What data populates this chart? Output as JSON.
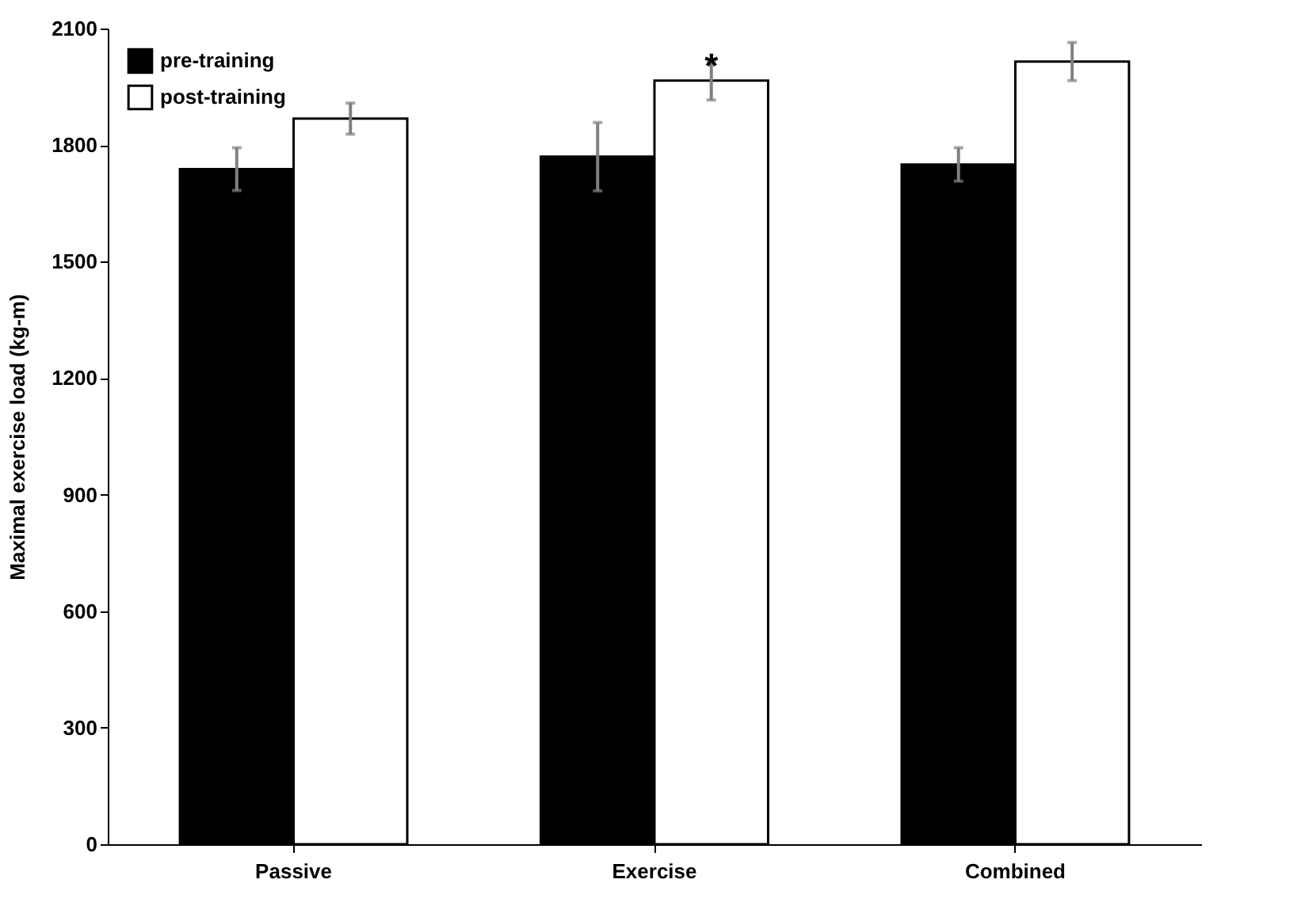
{
  "chart_data": {
    "type": "bar",
    "ylabel": "Maximal exercise load (kg-m)",
    "categories": [
      "Passive",
      "Exercise",
      "Combined"
    ],
    "series": [
      {
        "name": "pre-training",
        "color": "#000000",
        "values": [
          1738,
          1770,
          1750
        ],
        "errors": [
          55,
          88,
          43
        ]
      },
      {
        "name": "post-training",
        "color": "#ffffff",
        "values": [
          1868,
          1966,
          2015
        ],
        "errors": [
          40,
          50,
          49
        ]
      }
    ],
    "ylim": [
      0,
      2100
    ],
    "yticks": [
      0,
      300,
      600,
      900,
      1200,
      1500,
      1800,
      2100
    ],
    "annotations": [
      "*"
    ],
    "grid": false,
    "legend": "top left"
  }
}
